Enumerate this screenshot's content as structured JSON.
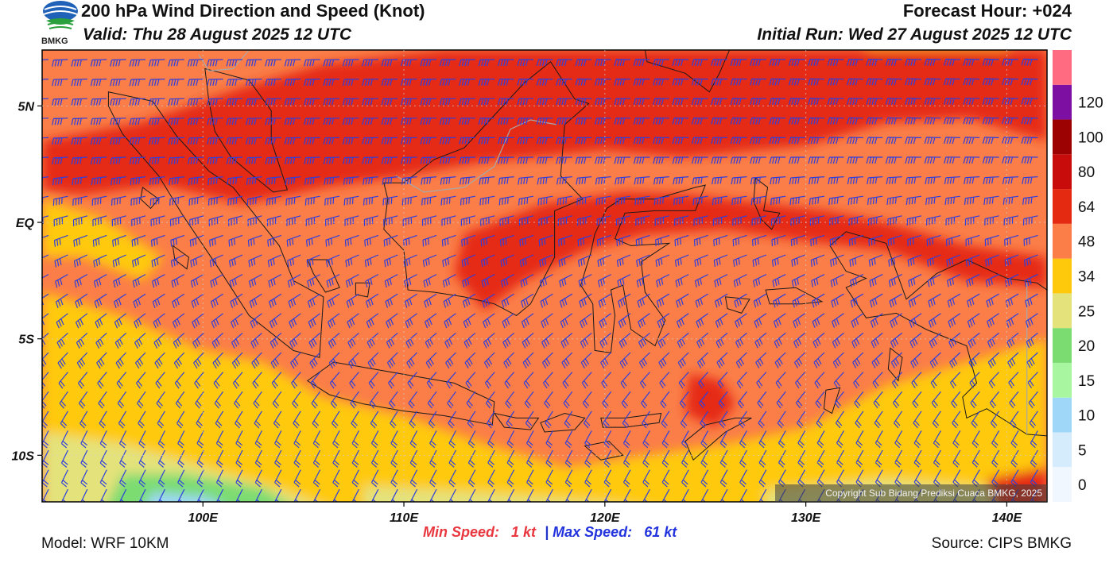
{
  "header": {
    "title": "200 hPa Wind Direction and Speed (Knot)",
    "valid": "Valid: Thu 28 August 2025 12 UTC",
    "forecast_hour": "Forecast Hour: +024",
    "initial_run": "Initial Run: Wed 27 August 2025 12 UTC",
    "logo_text": "BMKG"
  },
  "map": {
    "lon_range": [
      92,
      142
    ],
    "lat_range": [
      -12,
      7.4
    ],
    "lon_ticks": [
      {
        "value": 100,
        "label": "100E"
      },
      {
        "value": 110,
        "label": "110E"
      },
      {
        "value": 120,
        "label": "120E"
      },
      {
        "value": 130,
        "label": "130E"
      },
      {
        "value": 140,
        "label": "140E"
      }
    ],
    "lat_ticks": [
      {
        "value": 5,
        "label": "5N"
      },
      {
        "value": 0,
        "label": "EQ"
      },
      {
        "value": -5,
        "label": "5S"
      },
      {
        "value": -10,
        "label": "10S"
      }
    ],
    "copyright": "Copyright Sub Bidang Prediksi Cuaca BMKG, 2025"
  },
  "legend": {
    "bins": [
      {
        "label": "0",
        "color": "#f0f7fe"
      },
      {
        "label": "5",
        "color": "#d4ecfb"
      },
      {
        "label": "10",
        "color": "#9fd7f8"
      },
      {
        "label": "15",
        "color": "#a8f7a0"
      },
      {
        "label": "20",
        "color": "#7bdc72"
      },
      {
        "label": "25",
        "color": "#e4e27a"
      },
      {
        "label": "34",
        "color": "#ffc90b"
      },
      {
        "label": "48",
        "color": "#fb7e48"
      },
      {
        "label": "64",
        "color": "#e52a12"
      },
      {
        "label": "80",
        "color": "#c80b0b"
      },
      {
        "label": "100",
        "color": "#9c0202"
      },
      {
        "label": "120",
        "color": "#7e0fa3"
      },
      {
        "label": "",
        "color": "#ff6b80"
      }
    ]
  },
  "footer": {
    "model": "Model: WRF 10KM",
    "source": "Source: CIPS BMKG",
    "min_label": "Min Speed:",
    "min_value": "1 kt",
    "separator": "|",
    "max_label": "Max Speed:",
    "max_value": "61 kt"
  },
  "colors": {
    "barb": "#2f3fdc",
    "coast": "#1a1a1a",
    "border": "#a8a8a8"
  }
}
